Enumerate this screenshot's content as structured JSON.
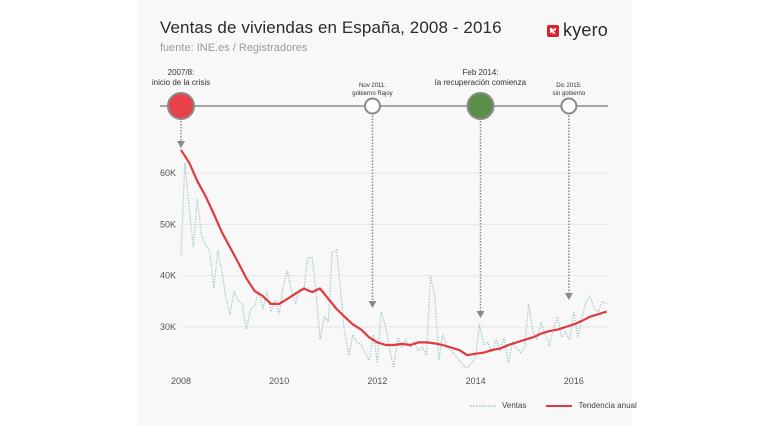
{
  "header": {
    "title": "Ventas de viviendas en España, 2008 - 2016",
    "subtitle": "fuente: INE.es / Registradores",
    "logo_text": "kyero"
  },
  "colors": {
    "trend": "#e03a3e",
    "sales": "#9cc4cc",
    "crisis": "#e8414a",
    "recovery": "#5a8f4a",
    "neutral": "#ffffff",
    "grid": "#e8e6e6"
  },
  "timeline": {
    "events": [
      {
        "id": "crisis",
        "date": "2007/8:",
        "label": "inicio de la crisis",
        "x": 2008.0,
        "style": "crisis",
        "big": true
      },
      {
        "id": "rajoy",
        "date": "Nov 2011:",
        "label": "gobierno Rajoy",
        "x": 2011.9,
        "style": "neutral",
        "big": false
      },
      {
        "id": "recovery",
        "date": "Feb 2014:",
        "label": "la recuperación comienza",
        "x": 2014.1,
        "style": "recovery",
        "big": true
      },
      {
        "id": "nogov",
        "date": "Dic 2015:",
        "label": "sin gobierno",
        "x": 2015.9,
        "style": "neutral",
        "big": false
      }
    ]
  },
  "chart_data": {
    "type": "line",
    "title": "Ventas de viviendas en España, 2008 - 2016",
    "xlabel": "",
    "ylabel": "",
    "x_ticks": [
      2008,
      2010,
      2012,
      2014,
      2016
    ],
    "x_tick_labels": [
      "2008",
      "2010",
      "2012",
      "2014",
      "2016"
    ],
    "y_ticks": [
      30000,
      40000,
      50000,
      60000
    ],
    "y_tick_labels": [
      "30K",
      "40K",
      "50K",
      "60K"
    ],
    "xlim": [
      2008,
      2016.75
    ],
    "grid": true,
    "legend_position": "bottom-right",
    "series": [
      {
        "name": "Ventas",
        "style": "dotted",
        "x": [
          2008.0,
          2008.08,
          2008.17,
          2008.25,
          2008.33,
          2008.42,
          2008.5,
          2008.58,
          2008.67,
          2008.75,
          2008.83,
          2008.92,
          2009.0,
          2009.08,
          2009.17,
          2009.25,
          2009.33,
          2009.42,
          2009.5,
          2009.58,
          2009.67,
          2009.75,
          2009.83,
          2009.92,
          2010.0,
          2010.08,
          2010.17,
          2010.25,
          2010.33,
          2010.42,
          2010.5,
          2010.58,
          2010.67,
          2010.75,
          2010.83,
          2010.92,
          2011.0,
          2011.08,
          2011.17,
          2011.25,
          2011.33,
          2011.42,
          2011.5,
          2011.58,
          2011.67,
          2011.75,
          2011.83,
          2011.92,
          2012.0,
          2012.08,
          2012.17,
          2012.25,
          2012.33,
          2012.42,
          2012.5,
          2012.58,
          2012.67,
          2012.75,
          2012.83,
          2012.92,
          2013.0,
          2013.08,
          2013.17,
          2013.25,
          2013.33,
          2013.42,
          2013.5,
          2013.58,
          2013.67,
          2013.75,
          2013.83,
          2013.92,
          2014.0,
          2014.08,
          2014.17,
          2014.25,
          2014.33,
          2014.42,
          2014.5,
          2014.58,
          2014.67,
          2014.75,
          2014.83,
          2014.92,
          2015.0,
          2015.08,
          2015.17,
          2015.25,
          2015.33,
          2015.42,
          2015.5,
          2015.58,
          2015.67,
          2015.75,
          2015.83,
          2015.92,
          2016.0,
          2016.08,
          2016.17,
          2016.25,
          2016.33,
          2016.42,
          2016.5,
          2016.58,
          2016.67
        ],
        "values": [
          44000,
          62000,
          53000,
          45500,
          55000,
          48000,
          46000,
          45000,
          37500,
          45000,
          41000,
          35500,
          32500,
          37000,
          35000,
          34500,
          29500,
          33500,
          34000,
          37000,
          33500,
          37000,
          33000,
          35000,
          32500,
          38000,
          41000,
          37000,
          34500,
          37500,
          37000,
          43500,
          43500,
          37000,
          27500,
          32000,
          31000,
          44500,
          45000,
          37000,
          29000,
          24500,
          28500,
          27000,
          26500,
          25000,
          23500,
          28500,
          23000,
          33000,
          30000,
          25500,
          22000,
          28000,
          26000,
          27500,
          26000,
          27000,
          25500,
          26000,
          24500,
          40000,
          36000,
          23500,
          28500,
          26000,
          25500,
          24500,
          23500,
          22500,
          22000,
          23000,
          24000,
          30500,
          26500,
          27000,
          25000,
          27500,
          25500,
          28000,
          23000,
          27000,
          26000,
          25000,
          26000,
          34500,
          29000,
          27500,
          31000,
          28500,
          26500,
          29500,
          32000,
          28000,
          29000,
          27500,
          33000,
          28000,
          32000,
          35000,
          36000,
          33500,
          33000,
          35000,
          34500
        ],
        "color": "#9cc4cc"
      },
      {
        "name": "Tendencia anual",
        "style": "solid",
        "x": [
          2008.0,
          2008.17,
          2008.33,
          2008.5,
          2008.67,
          2008.83,
          2009.0,
          2009.17,
          2009.33,
          2009.5,
          2009.67,
          2009.83,
          2010.0,
          2010.17,
          2010.33,
          2010.5,
          2010.67,
          2010.83,
          2011.0,
          2011.17,
          2011.33,
          2011.5,
          2011.67,
          2011.83,
          2012.0,
          2012.17,
          2012.33,
          2012.5,
          2012.67,
          2012.83,
          2013.0,
          2013.17,
          2013.33,
          2013.5,
          2013.67,
          2013.83,
          2014.0,
          2014.17,
          2014.33,
          2014.5,
          2014.67,
          2014.83,
          2015.0,
          2015.17,
          2015.33,
          2015.5,
          2015.67,
          2015.83,
          2016.0,
          2016.17,
          2016.33,
          2016.5,
          2016.67
        ],
        "values": [
          64500,
          62000,
          58500,
          55500,
          52000,
          48500,
          45500,
          42500,
          39500,
          37000,
          36000,
          34500,
          34500,
          35500,
          36500,
          37500,
          36800,
          37500,
          35500,
          33500,
          32000,
          30500,
          29500,
          28000,
          27000,
          26500,
          26500,
          26700,
          26500,
          27000,
          27000,
          26800,
          26500,
          26000,
          25500,
          24500,
          24800,
          25000,
          25500,
          25800,
          26500,
          27000,
          27500,
          28000,
          28700,
          29200,
          29500,
          30000,
          30500,
          31200,
          32000,
          32500,
          33000
        ],
        "color": "#e03a3e"
      }
    ]
  },
  "legend": {
    "items": [
      {
        "label": "Ventas",
        "style": "dotted"
      },
      {
        "label": "Tendencia anual",
        "style": "solid"
      }
    ]
  }
}
